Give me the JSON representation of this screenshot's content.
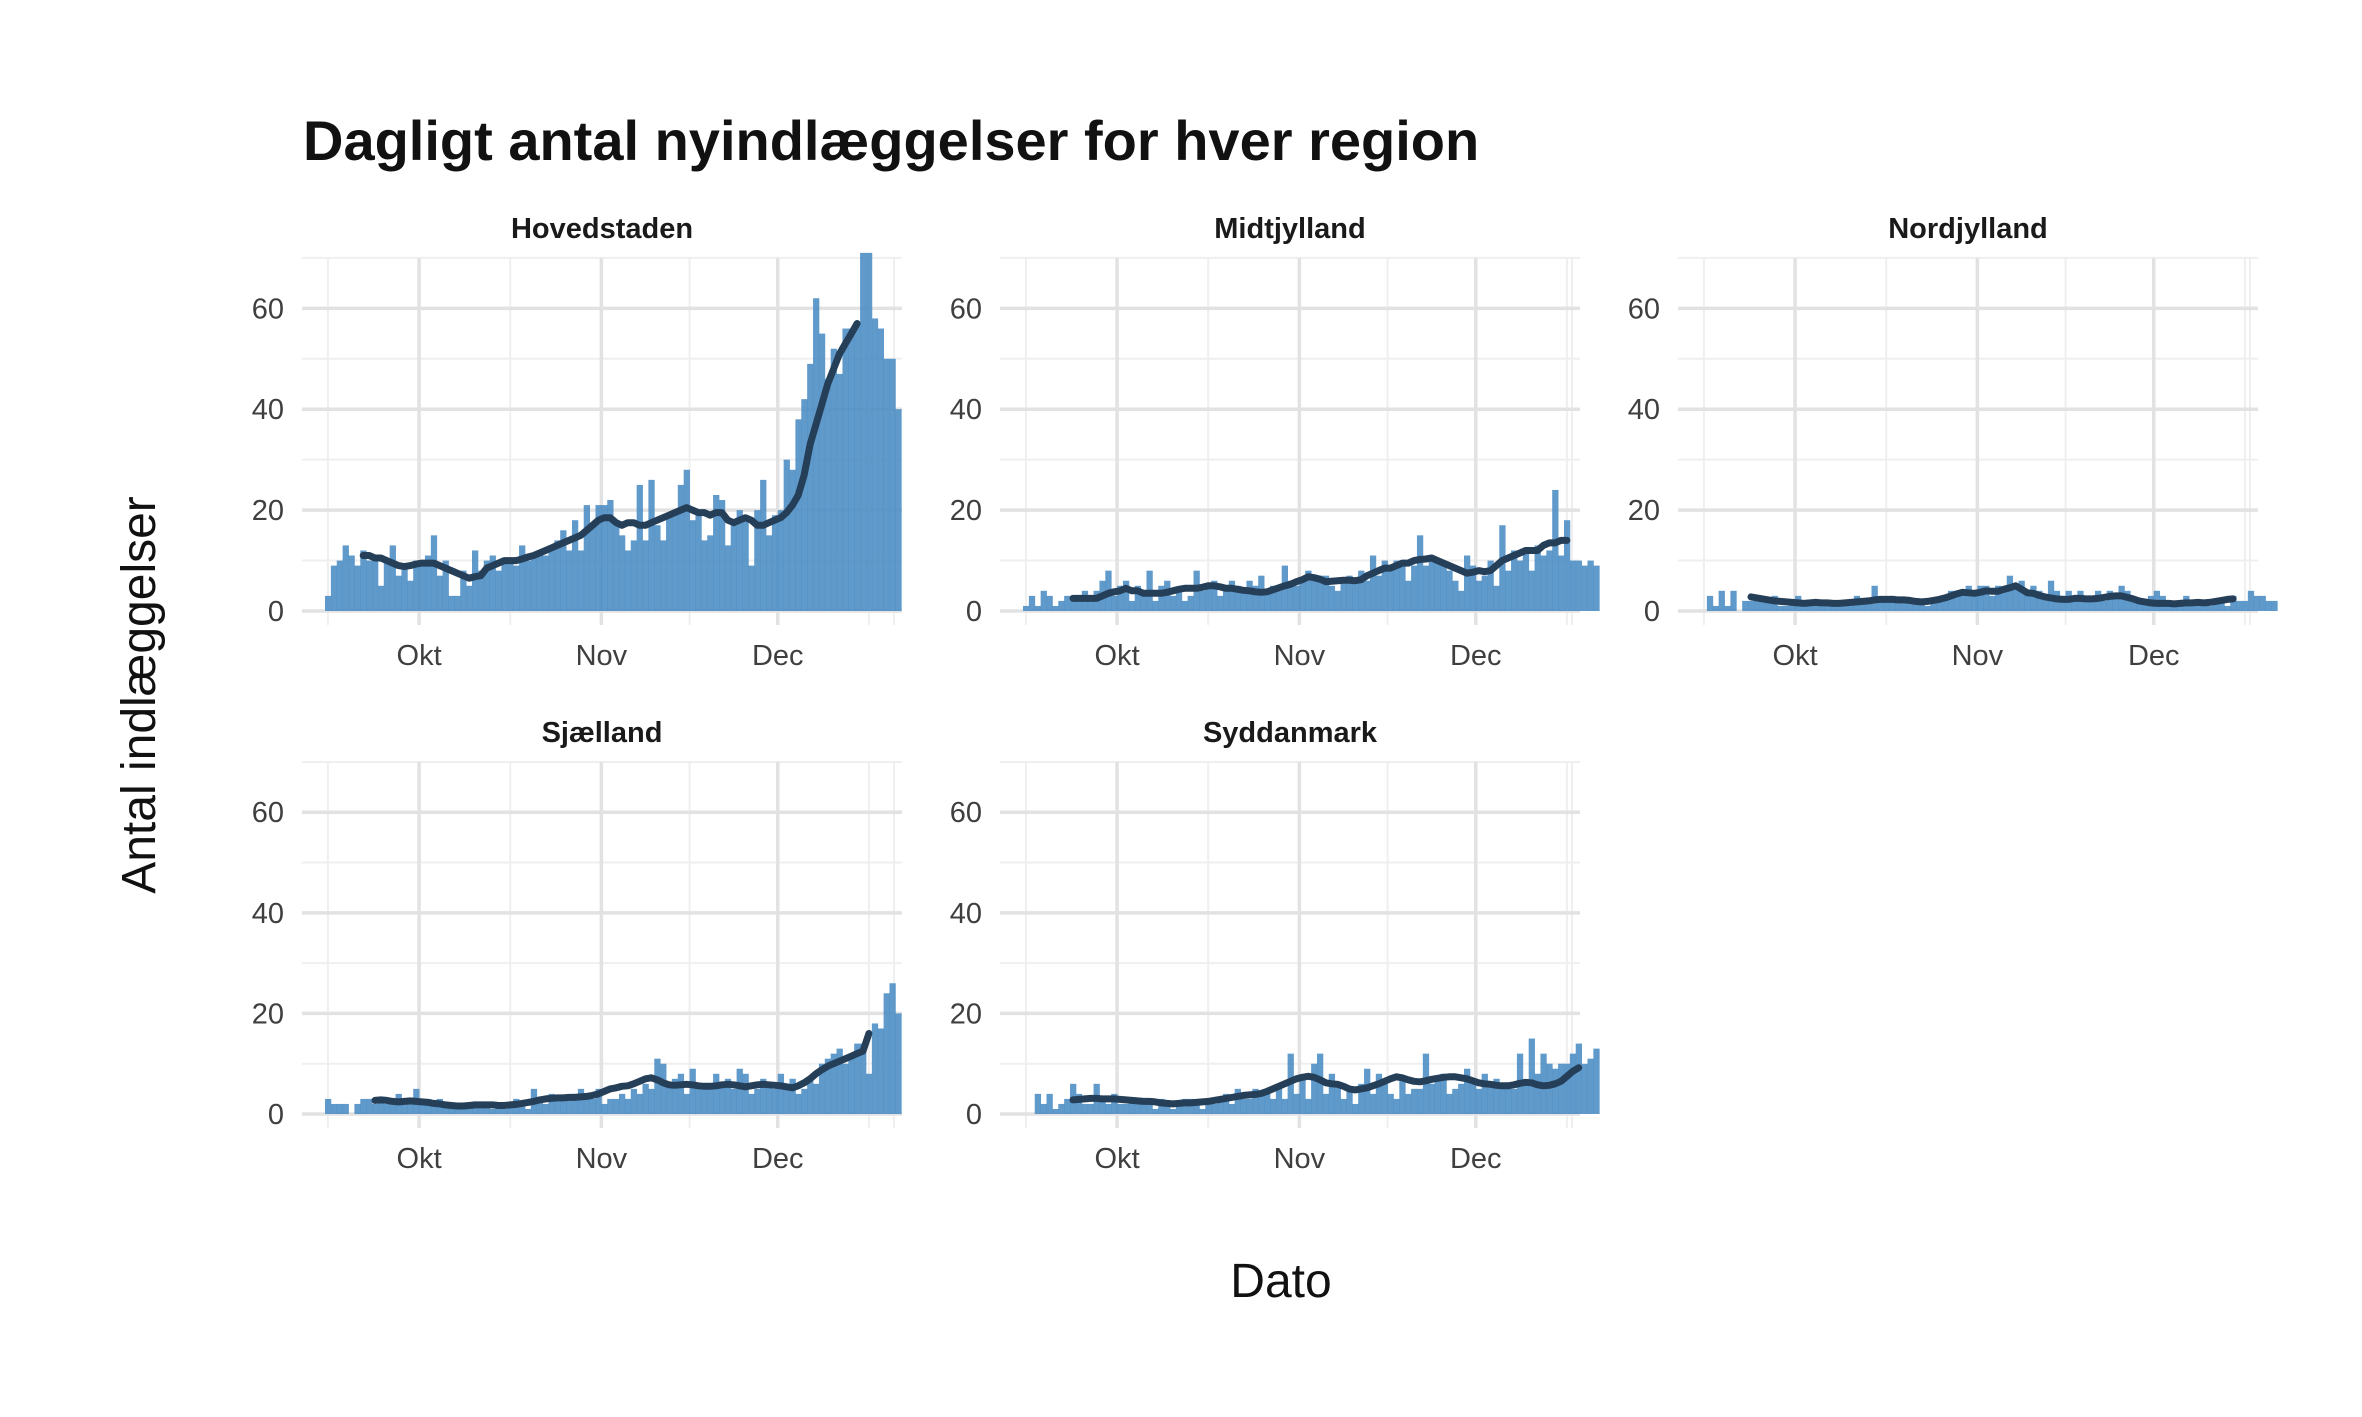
{
  "title": "Dagligt antal nyindlæggelser for hver region",
  "xlabel": "Dato",
  "ylabel": "Antal indlæggelser",
  "chart_data": {
    "type": "bar",
    "x_tick_labels": [
      "Okt",
      "Nov",
      "Dec"
    ],
    "y_ticks": [
      0,
      20,
      40,
      60
    ],
    "ylim": [
      0,
      75
    ],
    "x_start": "Sep 15",
    "n_days": 98,
    "bar_color": "#4a8cc4",
    "trend_color": "#263f59",
    "series": [
      {
        "name": "Hovedstaden",
        "values": [
          3,
          9,
          10,
          13,
          11,
          9,
          12,
          10,
          11,
          5,
          10,
          13,
          7,
          9,
          6,
          10,
          10,
          11,
          15,
          7,
          10,
          3,
          3,
          8,
          5,
          12,
          8,
          10,
          11,
          8,
          10,
          10,
          9,
          13,
          10,
          11,
          12,
          11,
          12,
          14,
          16,
          12,
          18,
          12,
          21,
          17,
          21,
          21,
          22,
          17,
          15,
          12,
          14,
          25,
          14,
          26,
          17,
          14,
          19,
          20,
          25,
          28,
          18,
          20,
          14,
          15,
          23,
          22,
          13,
          17,
          20,
          18,
          9,
          20,
          26,
          15,
          19,
          20,
          30,
          28,
          38,
          42,
          49,
          62,
          55,
          46,
          52,
          47,
          56,
          56,
          57,
          71,
          71,
          58,
          56,
          50,
          50,
          40
        ],
        "trend": [
          null,
          null,
          null,
          null,
          null,
          null,
          11,
          11,
          10.5,
          10.5,
          10,
          9.5,
          9,
          8.8,
          9,
          9.3,
          9.5,
          9.5,
          9.5,
          9,
          8.5,
          8,
          7.5,
          7,
          6.5,
          6.8,
          7,
          8.5,
          9,
          9.5,
          10,
          10,
          10,
          10.3,
          10.7,
          11,
          11.5,
          12,
          12.5,
          13,
          13.5,
          14,
          14.5,
          15,
          16,
          17,
          18,
          18.5,
          18.5,
          17.5,
          17,
          17.5,
          17.5,
          17,
          17,
          17.5,
          18,
          18.5,
          19,
          19.5,
          20,
          20.5,
          20,
          19.5,
          19.5,
          19,
          19.5,
          19.5,
          18,
          17.5,
          18,
          18.5,
          18,
          17,
          17,
          17.5,
          18,
          18.5,
          19.5,
          21,
          23,
          27,
          33,
          37,
          41,
          45,
          48,
          51,
          53,
          55,
          57,
          null,
          null,
          null,
          null,
          null,
          null,
          null
        ]
      },
      {
        "name": "Midtjylland",
        "values": [
          1,
          3,
          1,
          4,
          3,
          1,
          2,
          3,
          2,
          3,
          4,
          3,
          4,
          6,
          8,
          3,
          5,
          6,
          2,
          5,
          4,
          8,
          2,
          5,
          6,
          3,
          4,
          2,
          3,
          8,
          4,
          5,
          6,
          3,
          4,
          6,
          5,
          4,
          6,
          5,
          7,
          4,
          5,
          4,
          9,
          6,
          5,
          6,
          8,
          6,
          7,
          7,
          5,
          4,
          6,
          7,
          6,
          8,
          6,
          11,
          7,
          10,
          8,
          10,
          10,
          6,
          9,
          15,
          9,
          10,
          10,
          10,
          8,
          6,
          4,
          11,
          9,
          6,
          7,
          10,
          5,
          17,
          8,
          12,
          10,
          12,
          8,
          13,
          11,
          12,
          24,
          11,
          18,
          10,
          10,
          9,
          10,
          9
        ],
        "trend": [
          null,
          null,
          null,
          null,
          null,
          null,
          null,
          null,
          2.5,
          2.5,
          2.5,
          2.5,
          2.5,
          3,
          3.5,
          3.8,
          4,
          4.5,
          4,
          4,
          3.5,
          3.5,
          3.5,
          3.5,
          3.7,
          4,
          4.3,
          4.5,
          4.5,
          4.5,
          4.7,
          5,
          5,
          4.8,
          4.5,
          4.5,
          4.3,
          4.1,
          4,
          3.8,
          3.7,
          3.8,
          4.2,
          4.6,
          5,
          5.3,
          5.8,
          6.2,
          6.8,
          6.6,
          6.3,
          5.8,
          5.9,
          6,
          6.1,
          6.1,
          6,
          6.2,
          7,
          7.5,
          8,
          8.5,
          8.5,
          9,
          9.5,
          9.5,
          10,
          10.2,
          10.3,
          10.5,
          10,
          9.5,
          9,
          8.5,
          8,
          7.5,
          7.7,
          8,
          7.8,
          8,
          9,
          10,
          10.5,
          11,
          11.5,
          12,
          12,
          12,
          13,
          13.5,
          13.5,
          14,
          14,
          null,
          null,
          null,
          null,
          null
        ],
        "_note": ""
      },
      {
        "name": "Nordjylland",
        "values": [
          0,
          3,
          1,
          4,
          1,
          4,
          0,
          2,
          2,
          3,
          2,
          2,
          3,
          1,
          1,
          2,
          3,
          1,
          2,
          2,
          1,
          1,
          1,
          2,
          2,
          2,
          3,
          2,
          2,
          5,
          2,
          2,
          3,
          2,
          2,
          2,
          2,
          2,
          1,
          2,
          2,
          3,
          4,
          4,
          4,
          5,
          4,
          5,
          5,
          3,
          5,
          4,
          7,
          5,
          6,
          4,
          5,
          4,
          3,
          6,
          4,
          3,
          4,
          3,
          4,
          2,
          3,
          4,
          2,
          4,
          3,
          5,
          4,
          2,
          2,
          2,
          3,
          4,
          3,
          1,
          1,
          2,
          3,
          2,
          2,
          2,
          1,
          2,
          2,
          1,
          3,
          2,
          2,
          4,
          3,
          3,
          2,
          2
        ],
        "trend": [
          null,
          null,
          null,
          null,
          null,
          null,
          null,
          null,
          2.8,
          2.6,
          2.4,
          2.2,
          2,
          1.9,
          1.8,
          1.7,
          1.6,
          1.5,
          1.6,
          1.7,
          1.6,
          1.6,
          1.5,
          1.5,
          1.6,
          1.7,
          1.8,
          1.9,
          2,
          2.2,
          2.3,
          2.3,
          2.3,
          2.2,
          2.2,
          2.1,
          1.9,
          1.8,
          1.9,
          2.1,
          2.3,
          2.6,
          3,
          3.4,
          3.7,
          3.6,
          3.5,
          3.7,
          4,
          3.9,
          3.9,
          4.3,
          4.6,
          5,
          4.3,
          3.6,
          3.5,
          3.1,
          2.8,
          2.6,
          2.4,
          2.3,
          2.3,
          2.5,
          2.5,
          2.4,
          2.4,
          2.5,
          2.7,
          2.9,
          3,
          3,
          2.7,
          2.4,
          2,
          1.8,
          1.6,
          1.5,
          1.5,
          1.5,
          1.4,
          1.5,
          1.6,
          1.6,
          1.7,
          1.6,
          1.7,
          1.9,
          2.1,
          2.3,
          2.4,
          null,
          null,
          null,
          null,
          null,
          null,
          null
        ],
        "_note": ""
      },
      {
        "name": "Sjælland",
        "values": [
          3,
          2,
          2,
          2,
          0,
          2,
          3,
          3,
          2,
          3,
          2,
          2,
          4,
          2,
          3,
          5,
          3,
          3,
          2,
          3,
          2,
          2,
          2,
          1,
          2,
          2,
          2,
          2,
          1,
          2,
          1,
          2,
          3,
          2,
          1,
          5,
          3,
          2,
          4,
          3,
          3,
          3,
          4,
          5,
          3,
          3,
          5,
          2,
          3,
          3,
          4,
          3,
          5,
          4,
          6,
          5,
          11,
          10,
          6,
          7,
          8,
          4,
          9,
          6,
          5,
          6,
          8,
          6,
          7,
          5,
          9,
          8,
          4,
          5,
          7,
          6,
          5,
          8,
          5,
          7,
          4,
          5,
          7,
          6,
          10,
          11,
          12,
          13,
          10,
          12,
          14,
          14,
          8,
          18,
          17,
          24,
          26,
          20
        ],
        "trend": [
          null,
          null,
          null,
          null,
          null,
          null,
          null,
          null,
          2.7,
          2.8,
          2.7,
          2.5,
          2.4,
          2.5,
          2.6,
          2.5,
          2.4,
          2.3,
          2.1,
          2,
          1.8,
          1.7,
          1.6,
          1.6,
          1.7,
          1.8,
          1.8,
          1.8,
          1.8,
          1.7,
          1.7,
          1.8,
          1.9,
          2.1,
          2.3,
          2.5,
          2.8,
          3,
          3.1,
          3.2,
          3.2,
          3.3,
          3.3,
          3.4,
          3.5,
          3.7,
          4,
          4.5,
          5,
          5.2,
          5.5,
          5.6,
          6,
          6.5,
          7,
          7.2,
          6.8,
          6.2,
          5.8,
          5.7,
          5.8,
          5.9,
          5.8,
          5.6,
          5.5,
          5.5,
          5.6,
          5.8,
          5.9,
          5.8,
          5.6,
          5.4,
          5.6,
          5.8,
          5.9,
          5.8,
          5.7,
          5.6,
          5.4,
          5.2,
          5.6,
          6.2,
          7,
          8,
          8.8,
          9.5,
          10,
          10.5,
          11,
          11.5,
          12,
          12.5,
          16,
          null,
          null,
          null,
          null,
          null
        ],
        "_note": ""
      },
      {
        "name": "Syddanmark",
        "values": [
          0,
          0,
          4,
          2,
          4,
          1,
          2,
          3,
          6,
          4,
          2,
          2,
          6,
          3,
          2,
          4,
          2,
          2,
          3,
          2,
          3,
          2,
          1,
          3,
          2,
          1,
          2,
          3,
          3,
          2,
          1,
          2,
          2,
          3,
          4,
          2,
          5,
          3,
          3,
          5,
          4,
          5,
          3,
          6,
          3,
          12,
          4,
          7,
          3,
          10,
          12,
          4,
          8,
          6,
          3,
          5,
          2,
          6,
          9,
          4,
          8,
          6,
          4,
          3,
          7,
          4,
          5,
          5,
          12,
          6,
          7,
          8,
          4,
          5,
          6,
          9,
          6,
          5,
          8,
          6,
          7,
          6,
          5,
          5,
          12,
          6,
          15,
          8,
          12,
          10,
          9,
          10,
          10,
          12,
          14,
          10,
          11,
          13
        ],
        "trend": [
          null,
          null,
          null,
          null,
          null,
          null,
          null,
          null,
          2.8,
          2.9,
          3,
          3.1,
          3.1,
          3,
          3,
          3,
          2.9,
          2.8,
          2.7,
          2.6,
          2.5,
          2.5,
          2.4,
          2.2,
          2.1,
          2,
          2.1,
          2.2,
          2.2,
          2.3,
          2.4,
          2.5,
          2.7,
          2.9,
          3.1,
          3.3,
          3.5,
          3.7,
          3.8,
          3.9,
          4.1,
          4.5,
          5,
          5.5,
          6,
          6.5,
          7,
          7.3,
          7.5,
          7.3,
          6.8,
          6.2,
          6,
          5.9,
          5.5,
          5,
          4.8,
          5,
          5.2,
          5.6,
          6,
          6.5,
          7,
          7.4,
          7.2,
          6.8,
          6.5,
          6.4,
          6.6,
          6.9,
          7.1,
          7.3,
          7.4,
          7.4,
          7.2,
          7,
          6.6,
          6.2,
          6,
          5.9,
          5.7,
          5.6,
          5.6,
          5.8,
          6.1,
          6.3,
          6.2,
          5.8,
          5.6,
          5.7,
          6,
          6.5,
          7.5,
          8.5,
          9.2,
          null,
          null,
          null
        ],
        "_note": ""
      }
    ]
  }
}
